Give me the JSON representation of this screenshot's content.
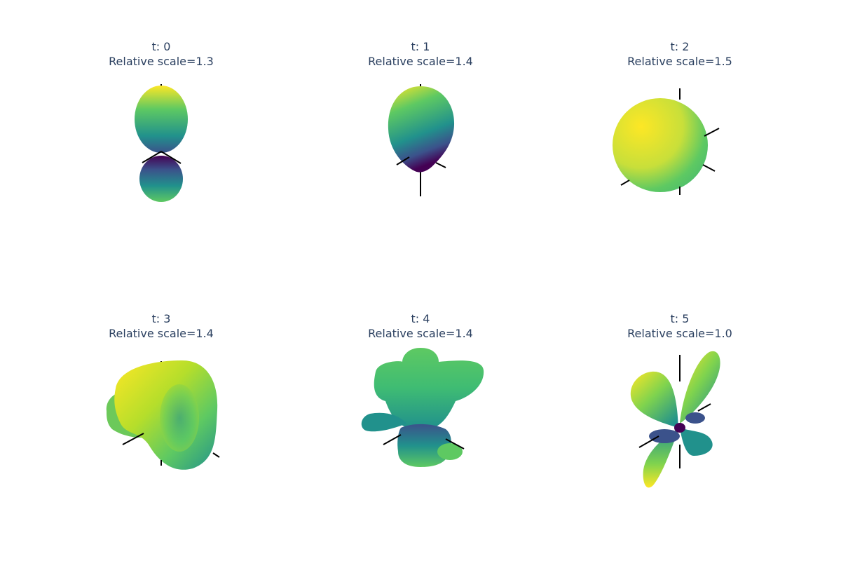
{
  "chart_data": {
    "type": "3d-surface",
    "colorscale": "viridis",
    "colors": [
      "#440154",
      "#3b528b",
      "#21918c",
      "#5ec962",
      "#fde725"
    ],
    "axis_line_color": "#000000",
    "panels": [
      {
        "t_label": "t: 0",
        "scale_label": "Relative scale=1.3",
        "t": 0,
        "relative_scale": 1.3,
        "shape": "dipole-vertical"
      },
      {
        "t_label": "t: 1",
        "scale_label": "Relative scale=1.4",
        "t": 1,
        "relative_scale": 1.4,
        "shape": "teardrop"
      },
      {
        "t_label": "t: 2",
        "scale_label": "Relative scale=1.5",
        "t": 2,
        "relative_scale": 1.5,
        "shape": "sphere"
      },
      {
        "t_label": "t: 3",
        "scale_label": "Relative scale=1.4",
        "t": 3,
        "relative_scale": 1.4,
        "shape": "twisted-lobes"
      },
      {
        "t_label": "t: 4",
        "scale_label": "Relative scale=1.4",
        "t": 4,
        "relative_scale": 1.4,
        "shape": "multi-lobe"
      },
      {
        "t_label": "t: 5",
        "scale_label": "Relative scale=1.0",
        "t": 5,
        "relative_scale": 1.0,
        "shape": "cloverleaf"
      }
    ]
  }
}
